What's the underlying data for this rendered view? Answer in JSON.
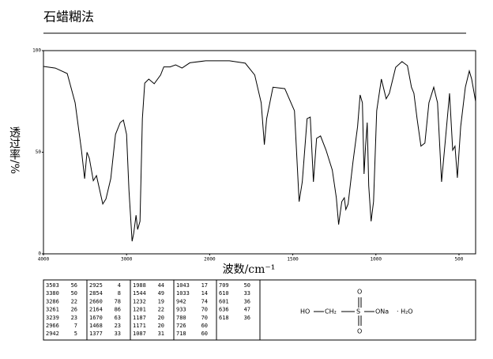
{
  "chart_data": {
    "type": "line",
    "title": "石蜡糊法",
    "x_label": "波数/cm⁻¹",
    "y_label": "透过率/%",
    "xlim": [
      4000,
      400
    ],
    "x_scale_change": 2000,
    "xticks": [
      4000,
      3000,
      2000,
      1500,
      1000,
      500
    ],
    "ylim": [
      0,
      100
    ],
    "yticks": [
      0,
      50,
      100
    ],
    "color": "#000000",
    "x": [
      4000,
      3857,
      3714,
      3619,
      3543,
      3505,
      3476,
      3448,
      3400,
      3362,
      3324,
      3286,
      3248,
      3190,
      3133,
      3076,
      3038,
      3000,
      2971,
      2933,
      2914,
      2886,
      2867,
      2838,
      2810,
      2781,
      2733,
      2667,
      2590,
      2552,
      2476,
      2410,
      2333,
      2238,
      2048,
      1881,
      1786,
      1729,
      1690,
      1671,
      1657,
      1619,
      1548,
      1490,
      1462,
      1443,
      1414,
      1395,
      1376,
      1357,
      1333,
      1300,
      1262,
      1238,
      1224,
      1205,
      1190,
      1181,
      1167,
      1138,
      1110,
      1095,
      1081,
      1071,
      1062,
      1052,
      1043,
      1029,
      1014,
      995,
      967,
      938,
      919,
      881,
      843,
      810,
      786,
      771,
      752,
      729,
      705,
      681,
      652,
      629,
      605,
      581,
      557,
      538,
      524,
      510,
      490,
      462,
      438,
      424,
      400
    ],
    "y": [
      92.2,
      91.4,
      88.7,
      74.3,
      51,
      37,
      50,
      47,
      36,
      38.5,
      31.5,
      24.5,
      27,
      37,
      58.8,
      64.6,
      65.8,
      58.8,
      31.5,
      6.2,
      10,
      19,
      12,
      16,
      66.5,
      84,
      86,
      83.7,
      88,
      92,
      92,
      93,
      91.4,
      94,
      95,
      95,
      93.8,
      88,
      74.3,
      53.7,
      66.5,
      82,
      81.3,
      70.4,
      25.7,
      35.4,
      66.5,
      67.3,
      35.4,
      56.8,
      58,
      51,
      41.2,
      27.6,
      14.4,
      25.7,
      27.6,
      21.8,
      24.5,
      45,
      62.6,
      78.2,
      74.3,
      39.3,
      53,
      64.6,
      33.5,
      16,
      25.7,
      70.4,
      86,
      76.3,
      79,
      91.8,
      94.6,
      92.6,
      82,
      79,
      66.5,
      53,
      54.5,
      74.3,
      82,
      74.3,
      35.4,
      56.8,
      79,
      51,
      53,
      37.4,
      62.6,
      82,
      90,
      86,
      75
    ]
  },
  "peak_table": [
    [
      3503,
      56
    ],
    [
      3380,
      50
    ],
    [
      3286,
      22
    ],
    [
      3261,
      26
    ],
    [
      3239,
      23
    ],
    [
      2966,
      7
    ],
    [
      2942,
      5
    ],
    [
      2925,
      4
    ],
    [
      2854,
      8
    ],
    [
      2660,
      78
    ],
    [
      2164,
      86
    ],
    [
      1670,
      63
    ],
    [
      1468,
      23
    ],
    [
      1377,
      33
    ],
    [
      1988,
      44
    ],
    [
      1544,
      49
    ],
    [
      1232,
      19
    ],
    [
      1201,
      22
    ],
    [
      1187,
      20
    ],
    [
      1171,
      20
    ],
    [
      1087,
      31
    ],
    [
      1043,
      17
    ],
    [
      1033,
      14
    ],
    [
      942,
      74
    ],
    [
      933,
      70
    ],
    [
      780,
      70
    ],
    [
      726,
      60
    ],
    [
      718,
      60
    ],
    [
      709,
      50
    ],
    [
      610,
      33
    ],
    [
      601,
      36
    ],
    [
      636,
      47
    ],
    [
      618,
      36
    ]
  ],
  "structure": {
    "ho": "HO",
    "ch2": "CH₂",
    "s": "S",
    "o_top": "O",
    "o_bottom": "O",
    "ona": "ONa",
    "hydrate": "· H₂O"
  }
}
